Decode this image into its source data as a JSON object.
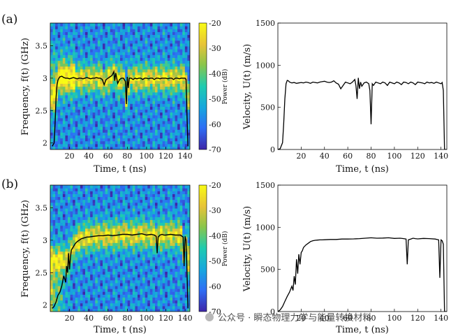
{
  "panels": [
    {
      "label": "(a)",
      "spectrogram": {
        "type": "heatmap",
        "xlabel": "Time, t (ns)",
        "ylabel": "Frequency, f(t) (GHz)",
        "xlim": [
          0,
          145
        ],
        "ylim": [
          1.9,
          3.85
        ],
        "xticks": [
          20,
          40,
          60,
          80,
          100,
          120,
          140
        ],
        "yticks": [
          2,
          2.5,
          3,
          3.5
        ],
        "colorbar": {
          "label": "Power (dB)",
          "ticks": [
            -20,
            -30,
            -40,
            -50,
            -60,
            -70
          ],
          "range": [
            -70,
            -20
          ]
        },
        "colors": [
          "#3e26a8",
          "#2e6ef5",
          "#16a6de",
          "#1ecbb0",
          "#8ac54b",
          "#e7c338",
          "#f9fb15"
        ],
        "ridge_line": {
          "t": [
            2,
            4,
            5,
            6,
            7,
            8,
            9,
            10,
            12,
            14,
            16,
            18,
            20,
            22,
            24,
            26,
            28,
            30,
            32,
            34,
            36,
            38,
            40,
            42,
            44,
            46,
            48,
            50,
            52,
            54,
            56,
            58,
            60,
            62,
            64,
            66,
            67,
            68,
            70,
            72,
            74,
            76,
            78,
            79,
            80,
            81,
            82,
            84,
            86,
            88,
            90,
            92,
            94,
            96,
            98,
            100,
            102,
            104,
            106,
            108,
            110,
            112,
            114,
            116,
            118,
            120,
            122,
            124,
            126,
            128,
            130,
            132,
            134,
            136,
            138,
            140,
            141,
            142,
            143
          ],
          "f": [
            1.95,
            2.0,
            2.3,
            2.7,
            2.9,
            2.97,
            3.0,
            3.02,
            3.03,
            3.01,
            3.0,
            3.0,
            2.99,
            3.0,
            3.01,
            3.0,
            2.99,
            3.0,
            3.0,
            2.99,
            3.0,
            3.01,
            3.0,
            2.99,
            3.0,
            3.0,
            3.01,
            3.0,
            3.0,
            2.98,
            2.9,
            2.98,
            3.0,
            3.02,
            3.04,
            3.1,
            2.96,
            3.08,
            2.92,
            2.98,
            3.0,
            3.0,
            2.95,
            2.6,
            3.02,
            2.85,
            3.0,
            3.0,
            2.98,
            3.0,
            2.99,
            3.0,
            3.0,
            2.98,
            3.0,
            3.0,
            2.99,
            3.0,
            3.0,
            2.98,
            3.0,
            3.0,
            2.99,
            3.0,
            3.0,
            3.0,
            2.99,
            3.0,
            3.0,
            2.98,
            3.0,
            3.0,
            2.99,
            3.0,
            3.0,
            3.0,
            2.98,
            2.4,
            1.95
          ]
        }
      },
      "velocity": {
        "type": "line",
        "xlabel": "Time, t (ns)",
        "ylabel": "Velocity, U(t) (m/s)",
        "xlim": [
          0,
          145
        ],
        "ylim": [
          0,
          1500
        ],
        "xticks": [
          20,
          40,
          60,
          80,
          100,
          120,
          140
        ],
        "yticks": [
          0,
          500,
          1000,
          1500
        ],
        "t": [
          0,
          2,
          4,
          5,
          6,
          7,
          8,
          9,
          10,
          12,
          14,
          16,
          18,
          20,
          22,
          24,
          26,
          28,
          30,
          32,
          34,
          36,
          38,
          40,
          42,
          44,
          46,
          48,
          50,
          52,
          54,
          56,
          58,
          60,
          62,
          64,
          66,
          67,
          68,
          69,
          70,
          71,
          72,
          74,
          76,
          78,
          79,
          80,
          81,
          82,
          84,
          86,
          88,
          90,
          92,
          94,
          96,
          98,
          100,
          102,
          104,
          106,
          108,
          110,
          112,
          114,
          116,
          118,
          120,
          122,
          124,
          126,
          128,
          130,
          132,
          134,
          136,
          138,
          140,
          141,
          142,
          143,
          145
        ],
        "u": [
          0,
          10,
          80,
          300,
          600,
          780,
          820,
          815,
          800,
          790,
          795,
          785,
          790,
          795,
          790,
          800,
          795,
          785,
          800,
          795,
          790,
          800,
          805,
          810,
          800,
          795,
          800,
          815,
          790,
          775,
          720,
          760,
          800,
          790,
          780,
          800,
          830,
          760,
          600,
          850,
          720,
          800,
          750,
          790,
          800,
          780,
          700,
          300,
          780,
          760,
          800,
          790,
          780,
          800,
          790,
          760,
          800,
          790,
          780,
          800,
          790,
          770,
          800,
          795,
          780,
          800,
          790,
          770,
          800,
          795,
          790,
          780,
          800,
          790,
          795,
          785,
          800,
          790,
          780,
          795,
          700,
          0,
          0
        ]
      }
    },
    {
      "label": "(b)",
      "spectrogram": {
        "type": "heatmap",
        "xlabel": "Time, t (ns)",
        "ylabel": "Frequency, f(t) (GHz)",
        "xlim": [
          0,
          145
        ],
        "ylim": [
          1.9,
          3.85
        ],
        "xticks": [
          20,
          40,
          60,
          80,
          100,
          120,
          140
        ],
        "yticks": [
          2,
          2.5,
          3,
          3.5
        ],
        "colorbar": {
          "label": "Power (dB)",
          "ticks": [
            -20,
            -30,
            -40,
            -50,
            -60,
            -70
          ],
          "range": [
            -70,
            -20
          ]
        },
        "colors": [
          "#3e26a8",
          "#2e6ef5",
          "#16a6de",
          "#1ecbb0",
          "#8ac54b",
          "#e7c338",
          "#f9fb15"
        ],
        "ridge_line": {
          "t": [
            2,
            4,
            6,
            8,
            10,
            12,
            14,
            16,
            17,
            18,
            19,
            20,
            21,
            22,
            24,
            26,
            28,
            30,
            32,
            34,
            36,
            38,
            40,
            45,
            50,
            55,
            60,
            65,
            70,
            75,
            80,
            85,
            90,
            95,
            100,
            105,
            108,
            110,
            111,
            112,
            114,
            116,
            118,
            120,
            125,
            130,
            135,
            138,
            139,
            140,
            141,
            142,
            143
          ],
          "f": [
            1.95,
            1.98,
            2.05,
            2.15,
            2.2,
            2.3,
            2.45,
            2.35,
            2.6,
            2.5,
            2.8,
            2.55,
            2.75,
            2.85,
            2.9,
            2.95,
            2.98,
            3.0,
            3.02,
            3.03,
            3.04,
            3.05,
            3.05,
            3.06,
            3.07,
            3.07,
            3.08,
            3.07,
            3.08,
            3.09,
            3.09,
            3.08,
            3.09,
            3.1,
            3.08,
            3.09,
            3.08,
            3.06,
            2.8,
            3.05,
            3.08,
            3.09,
            3.08,
            3.08,
            3.09,
            3.08,
            3.08,
            3.05,
            2.6,
            3.06,
            3.0,
            2.5,
            1.95
          ]
        }
      },
      "velocity": {
        "type": "line",
        "xlabel": "Time, t (ns)",
        "ylabel": "Velocity, U(t) (m/s)",
        "xlim": [
          0,
          145
        ],
        "ylim": [
          0,
          1500
        ],
        "xticks": [
          20,
          40,
          60,
          80,
          100,
          120,
          140
        ],
        "yticks": [
          0,
          500,
          1000,
          1500
        ],
        "t": [
          0,
          2,
          4,
          6,
          8,
          10,
          12,
          13,
          14,
          15,
          16,
          17,
          18,
          19,
          20,
          21,
          22,
          24,
          26,
          28,
          30,
          32,
          34,
          36,
          38,
          40,
          45,
          50,
          55,
          60,
          65,
          70,
          75,
          80,
          85,
          90,
          95,
          100,
          105,
          108,
          110,
          111,
          112,
          114,
          116,
          118,
          120,
          125,
          130,
          135,
          138,
          139,
          140,
          141,
          142,
          143,
          145
        ],
        "u": [
          0,
          20,
          60,
          120,
          180,
          230,
          300,
          250,
          420,
          320,
          620,
          450,
          680,
          560,
          700,
          720,
          760,
          790,
          810,
          830,
          840,
          845,
          848,
          850,
          850,
          852,
          855,
          855,
          860,
          860,
          862,
          865,
          870,
          875,
          870,
          872,
          875,
          868,
          870,
          865,
          860,
          560,
          850,
          860,
          870,
          865,
          862,
          868,
          865,
          860,
          850,
          400,
          850,
          840,
          800,
          0,
          0
        ]
      }
    }
  ],
  "watermark": "公众号 · 瞬态物理力学与能量转换材料"
}
